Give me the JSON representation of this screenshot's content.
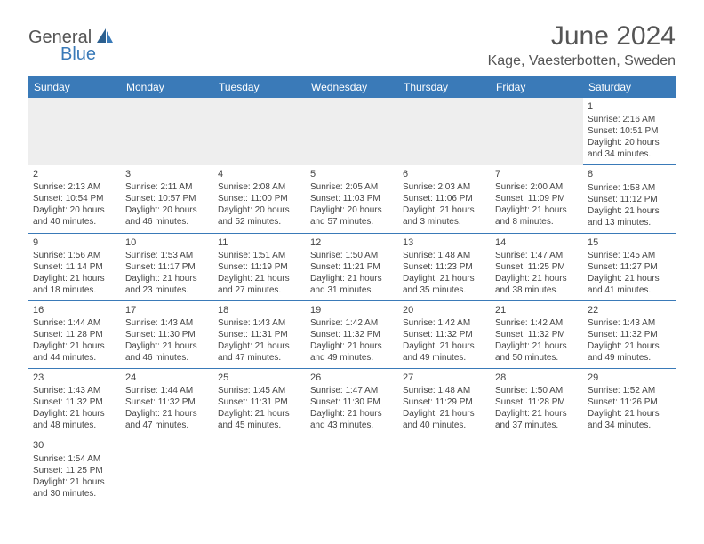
{
  "logo": {
    "part1": "General",
    "part2": "Blue"
  },
  "title": "June 2024",
  "location": "Kage, Vaesterbotten, Sweden",
  "weekdays": [
    "Sunday",
    "Monday",
    "Tuesday",
    "Wednesday",
    "Thursday",
    "Friday",
    "Saturday"
  ],
  "colors": {
    "header_bg": "#3a7ab8",
    "header_text": "#ffffff",
    "border": "#3a7ab8",
    "text": "#444444",
    "title_text": "#555555",
    "blank_bg": "#eeeeee",
    "logo_accent": "#3a7ab8"
  },
  "days": {
    "1": {
      "sunrise": "2:16 AM",
      "sunset": "10:51 PM",
      "daylight": "20 hours and 34 minutes."
    },
    "2": {
      "sunrise": "2:13 AM",
      "sunset": "10:54 PM",
      "daylight": "20 hours and 40 minutes."
    },
    "3": {
      "sunrise": "2:11 AM",
      "sunset": "10:57 PM",
      "daylight": "20 hours and 46 minutes."
    },
    "4": {
      "sunrise": "2:08 AM",
      "sunset": "11:00 PM",
      "daylight": "20 hours and 52 minutes."
    },
    "5": {
      "sunrise": "2:05 AM",
      "sunset": "11:03 PM",
      "daylight": "20 hours and 57 minutes."
    },
    "6": {
      "sunrise": "2:03 AM",
      "sunset": "11:06 PM",
      "daylight": "21 hours and 3 minutes."
    },
    "7": {
      "sunrise": "2:00 AM",
      "sunset": "11:09 PM",
      "daylight": "21 hours and 8 minutes."
    },
    "8": {
      "sunrise": "1:58 AM",
      "sunset": "11:12 PM",
      "daylight": "21 hours and 13 minutes."
    },
    "9": {
      "sunrise": "1:56 AM",
      "sunset": "11:14 PM",
      "daylight": "21 hours and 18 minutes."
    },
    "10": {
      "sunrise": "1:53 AM",
      "sunset": "11:17 PM",
      "daylight": "21 hours and 23 minutes."
    },
    "11": {
      "sunrise": "1:51 AM",
      "sunset": "11:19 PM",
      "daylight": "21 hours and 27 minutes."
    },
    "12": {
      "sunrise": "1:50 AM",
      "sunset": "11:21 PM",
      "daylight": "21 hours and 31 minutes."
    },
    "13": {
      "sunrise": "1:48 AM",
      "sunset": "11:23 PM",
      "daylight": "21 hours and 35 minutes."
    },
    "14": {
      "sunrise": "1:47 AM",
      "sunset": "11:25 PM",
      "daylight": "21 hours and 38 minutes."
    },
    "15": {
      "sunrise": "1:45 AM",
      "sunset": "11:27 PM",
      "daylight": "21 hours and 41 minutes."
    },
    "16": {
      "sunrise": "1:44 AM",
      "sunset": "11:28 PM",
      "daylight": "21 hours and 44 minutes."
    },
    "17": {
      "sunrise": "1:43 AM",
      "sunset": "11:30 PM",
      "daylight": "21 hours and 46 minutes."
    },
    "18": {
      "sunrise": "1:43 AM",
      "sunset": "11:31 PM",
      "daylight": "21 hours and 47 minutes."
    },
    "19": {
      "sunrise": "1:42 AM",
      "sunset": "11:32 PM",
      "daylight": "21 hours and 49 minutes."
    },
    "20": {
      "sunrise": "1:42 AM",
      "sunset": "11:32 PM",
      "daylight": "21 hours and 49 minutes."
    },
    "21": {
      "sunrise": "1:42 AM",
      "sunset": "11:32 PM",
      "daylight": "21 hours and 50 minutes."
    },
    "22": {
      "sunrise": "1:43 AM",
      "sunset": "11:32 PM",
      "daylight": "21 hours and 49 minutes."
    },
    "23": {
      "sunrise": "1:43 AM",
      "sunset": "11:32 PM",
      "daylight": "21 hours and 48 minutes."
    },
    "24": {
      "sunrise": "1:44 AM",
      "sunset": "11:32 PM",
      "daylight": "21 hours and 47 minutes."
    },
    "25": {
      "sunrise": "1:45 AM",
      "sunset": "11:31 PM",
      "daylight": "21 hours and 45 minutes."
    },
    "26": {
      "sunrise": "1:47 AM",
      "sunset": "11:30 PM",
      "daylight": "21 hours and 43 minutes."
    },
    "27": {
      "sunrise": "1:48 AM",
      "sunset": "11:29 PM",
      "daylight": "21 hours and 40 minutes."
    },
    "28": {
      "sunrise": "1:50 AM",
      "sunset": "11:28 PM",
      "daylight": "21 hours and 37 minutes."
    },
    "29": {
      "sunrise": "1:52 AM",
      "sunset": "11:26 PM",
      "daylight": "21 hours and 34 minutes."
    },
    "30": {
      "sunrise": "1:54 AM",
      "sunset": "11:25 PM",
      "daylight": "21 hours and 30 minutes."
    }
  },
  "labels": {
    "sunrise_prefix": "Sunrise: ",
    "sunset_prefix": "Sunset: ",
    "daylight_prefix": "Daylight: "
  },
  "grid": [
    [
      null,
      null,
      null,
      null,
      null,
      null,
      "1"
    ],
    [
      "2",
      "3",
      "4",
      "5",
      "6",
      "7",
      "8"
    ],
    [
      "9",
      "10",
      "11",
      "12",
      "13",
      "14",
      "15"
    ],
    [
      "16",
      "17",
      "18",
      "19",
      "20",
      "21",
      "22"
    ],
    [
      "23",
      "24",
      "25",
      "26",
      "27",
      "28",
      "29"
    ],
    [
      "30",
      null,
      null,
      null,
      null,
      null,
      null
    ]
  ]
}
